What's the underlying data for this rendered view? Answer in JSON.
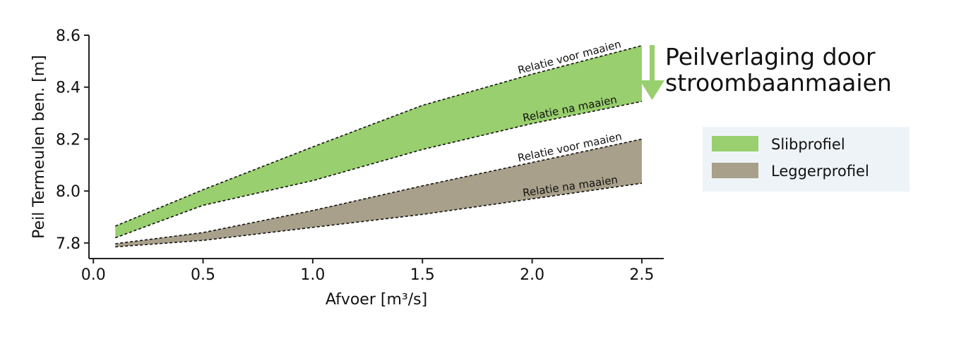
{
  "chart_data": {
    "type": "band",
    "x_label": "Afvoer [m³/s]",
    "y_label": "Peil Termeulen ben. [m]",
    "annotation": [
      "Peilverlaging door",
      "stroombaanmaaien"
    ],
    "annotation_color": "#99cf6e",
    "x": [
      0.1,
      0.5,
      1.0,
      1.5,
      2.0,
      2.5
    ],
    "series": [
      {
        "name": "Slibprofiel",
        "color": "#99cf6e",
        "upper_label": "Relatie voor maaien",
        "lower_label": "Relatie na maaien",
        "upper_values": [
          7.865,
          8.005,
          8.17,
          8.33,
          8.45,
          8.56
        ],
        "lower_values": [
          7.82,
          7.945,
          8.04,
          8.16,
          8.26,
          8.345
        ]
      },
      {
        "name": "Leggerprofiel",
        "color": "#a8a08a",
        "upper_label": "Relatie voor maaien",
        "lower_label": "Relatie na maaien",
        "upper_values": [
          7.797,
          7.84,
          7.925,
          8.02,
          8.11,
          8.2
        ],
        "lower_values": [
          7.785,
          7.81,
          7.86,
          7.91,
          7.97,
          8.03
        ]
      }
    ],
    "xlim": [
      -0.02,
      2.6
    ],
    "ylim": [
      7.74,
      8.6
    ],
    "xticks": [
      {
        "value": 0,
        "label": "0.0"
      },
      0.5,
      {
        "value": 1,
        "label": "1.0"
      },
      1.5,
      {
        "value": 2,
        "label": "2.0"
      },
      2.5
    ],
    "yticks": [
      7.8,
      {
        "value": 8,
        "label": "8.0"
      },
      8.2,
      8.4,
      8.6
    ]
  }
}
